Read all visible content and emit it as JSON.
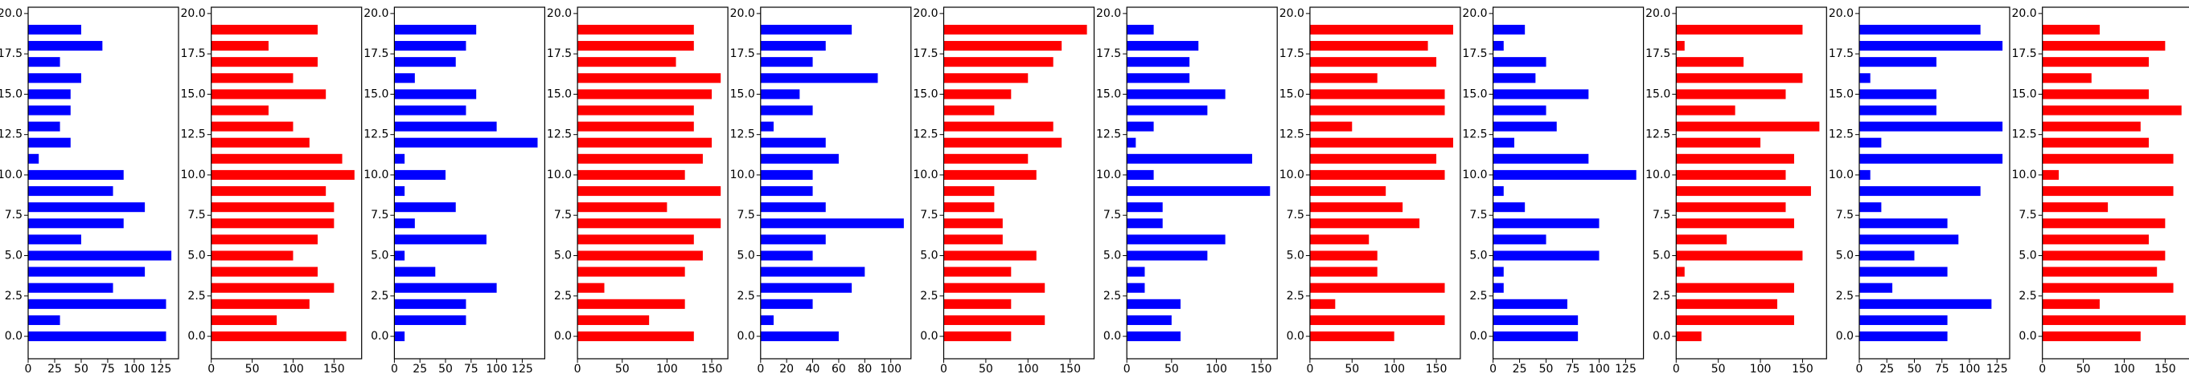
{
  "chart_data": [
    {
      "type": "barh",
      "color": "#0000ff",
      "y": [
        0,
        1,
        2,
        3,
        4,
        5,
        6,
        7,
        8,
        9,
        10,
        11,
        12,
        13,
        14,
        15,
        16,
        17,
        18,
        19
      ],
      "values": [
        130,
        30,
        130,
        80,
        110,
        135,
        50,
        90,
        110,
        80,
        90,
        10,
        40,
        30,
        40,
        40,
        50,
        30,
        70,
        50
      ],
      "xlim": [
        0,
        141.75
      ],
      "xticks": [
        0,
        25,
        50,
        75,
        100,
        125
      ],
      "ylim": [
        -1.39,
        20.39
      ],
      "yticks": [
        {
          "value": 0,
          "label": "0.0"
        },
        {
          "value": 2.5,
          "label": "2.5"
        },
        {
          "value": 5,
          "label": "5.0"
        },
        {
          "value": 7.5,
          "label": "7.5"
        },
        {
          "value": 10,
          "label": "10.0"
        },
        {
          "value": 12.5,
          "label": "12.5"
        },
        {
          "value": 15,
          "label": "15.0"
        },
        {
          "value": 17.5,
          "label": "17.5"
        },
        {
          "value": 20,
          "label": "20.0"
        }
      ]
    },
    {
      "type": "barh",
      "color": "#ff0000",
      "y": [
        0,
        1,
        2,
        3,
        4,
        5,
        6,
        7,
        8,
        9,
        10,
        11,
        12,
        13,
        14,
        15,
        16,
        17,
        18,
        19
      ],
      "values": [
        165,
        80,
        120,
        150,
        130,
        100,
        130,
        150,
        150,
        140,
        175,
        160,
        120,
        100,
        70,
        140,
        100,
        130,
        70,
        130
      ],
      "xlim": [
        0,
        183.75
      ],
      "xticks": [
        0,
        50,
        100,
        150
      ],
      "ylim": [
        -1.39,
        20.39
      ],
      "yticks": [
        {
          "value": 0,
          "label": "0.0"
        },
        {
          "value": 2.5,
          "label": "2.5"
        },
        {
          "value": 5,
          "label": "5.0"
        },
        {
          "value": 7.5,
          "label": "7.5"
        },
        {
          "value": 10,
          "label": "10.0"
        },
        {
          "value": 12.5,
          "label": "12.5"
        },
        {
          "value": 15,
          "label": "15.0"
        },
        {
          "value": 17.5,
          "label": "17.5"
        },
        {
          "value": 20,
          "label": "20.0"
        }
      ]
    },
    {
      "type": "barh",
      "color": "#0000ff",
      "y": [
        0,
        1,
        2,
        3,
        4,
        5,
        6,
        7,
        8,
        9,
        10,
        11,
        12,
        13,
        14,
        15,
        16,
        17,
        18,
        19
      ],
      "values": [
        10,
        70,
        70,
        100,
        40,
        10,
        90,
        20,
        60,
        10,
        50,
        10,
        140,
        100,
        70,
        80,
        20,
        60,
        70,
        80
      ],
      "xlim": [
        0,
        147
      ],
      "xticks": [
        0,
        25,
        50,
        75,
        100,
        125
      ],
      "ylim": [
        -1.39,
        20.39
      ],
      "yticks": [
        {
          "value": 0,
          "label": "0.0"
        },
        {
          "value": 2.5,
          "label": "2.5"
        },
        {
          "value": 5,
          "label": "5.0"
        },
        {
          "value": 7.5,
          "label": "7.5"
        },
        {
          "value": 10,
          "label": "10.0"
        },
        {
          "value": 12.5,
          "label": "12.5"
        },
        {
          "value": 15,
          "label": "15.0"
        },
        {
          "value": 17.5,
          "label": "17.5"
        },
        {
          "value": 20,
          "label": "20.0"
        }
      ]
    },
    {
      "type": "barh",
      "color": "#ff0000",
      "y": [
        0,
        1,
        2,
        3,
        4,
        5,
        6,
        7,
        8,
        9,
        10,
        11,
        12,
        13,
        14,
        15,
        16,
        17,
        18,
        19
      ],
      "values": [
        130,
        80,
        120,
        30,
        120,
        140,
        130,
        160,
        100,
        160,
        120,
        140,
        150,
        130,
        130,
        150,
        160,
        110,
        130,
        130
      ],
      "xlim": [
        0,
        168
      ],
      "xticks": [
        0,
        50,
        100,
        150
      ],
      "ylim": [
        -1.39,
        20.39
      ],
      "yticks": [
        {
          "value": 0,
          "label": "0.0"
        },
        {
          "value": 2.5,
          "label": "2.5"
        },
        {
          "value": 5,
          "label": "5.0"
        },
        {
          "value": 7.5,
          "label": "7.5"
        },
        {
          "value": 10,
          "label": "10.0"
        },
        {
          "value": 12.5,
          "label": "12.5"
        },
        {
          "value": 15,
          "label": "15.0"
        },
        {
          "value": 17.5,
          "label": "17.5"
        },
        {
          "value": 20,
          "label": "20.0"
        }
      ]
    },
    {
      "type": "barh",
      "color": "#0000ff",
      "y": [
        0,
        1,
        2,
        3,
        4,
        5,
        6,
        7,
        8,
        9,
        10,
        11,
        12,
        13,
        14,
        15,
        16,
        17,
        18,
        19
      ],
      "values": [
        60,
        10,
        40,
        70,
        80,
        40,
        50,
        110,
        50,
        40,
        40,
        60,
        50,
        10,
        40,
        30,
        90,
        40,
        50,
        70
      ],
      "xlim": [
        0,
        115.5
      ],
      "xticks": [
        0,
        20,
        40,
        60,
        80,
        100
      ],
      "ylim": [
        -1.39,
        20.39
      ],
      "yticks": [
        {
          "value": 0,
          "label": "0.0"
        },
        {
          "value": 2.5,
          "label": "2.5"
        },
        {
          "value": 5,
          "label": "5.0"
        },
        {
          "value": 7.5,
          "label": "7.5"
        },
        {
          "value": 10,
          "label": "10.0"
        },
        {
          "value": 12.5,
          "label": "12.5"
        },
        {
          "value": 15,
          "label": "15.0"
        },
        {
          "value": 17.5,
          "label": "17.5"
        },
        {
          "value": 20,
          "label": "20.0"
        }
      ]
    },
    {
      "type": "barh",
      "color": "#ff0000",
      "y": [
        0,
        1,
        2,
        3,
        4,
        5,
        6,
        7,
        8,
        9,
        10,
        11,
        12,
        13,
        14,
        15,
        16,
        17,
        18,
        19
      ],
      "values": [
        80,
        120,
        80,
        120,
        80,
        110,
        70,
        70,
        60,
        60,
        110,
        100,
        140,
        130,
        60,
        80,
        100,
        130,
        140,
        170
      ],
      "xlim": [
        0,
        178.5
      ],
      "xticks": [
        0,
        50,
        100,
        150
      ],
      "ylim": [
        -1.39,
        20.39
      ],
      "yticks": [
        {
          "value": 0,
          "label": "0.0"
        },
        {
          "value": 2.5,
          "label": "2.5"
        },
        {
          "value": 5,
          "label": "5.0"
        },
        {
          "value": 7.5,
          "label": "7.5"
        },
        {
          "value": 10,
          "label": "10.0"
        },
        {
          "value": 12.5,
          "label": "12.5"
        },
        {
          "value": 15,
          "label": "15.0"
        },
        {
          "value": 17.5,
          "label": "17.5"
        },
        {
          "value": 20,
          "label": "20.0"
        }
      ]
    },
    {
      "type": "barh",
      "color": "#0000ff",
      "y": [
        0,
        1,
        2,
        3,
        4,
        5,
        6,
        7,
        8,
        9,
        10,
        11,
        12,
        13,
        14,
        15,
        16,
        17,
        18,
        19
      ],
      "values": [
        60,
        50,
        60,
        20,
        20,
        90,
        110,
        40,
        40,
        160,
        30,
        140,
        10,
        30,
        90,
        110,
        70,
        70,
        80,
        30
      ],
      "xlim": [
        0,
        168
      ],
      "xticks": [
        0,
        50,
        100,
        150
      ],
      "ylim": [
        -1.39,
        20.39
      ],
      "yticks": [
        {
          "value": 0,
          "label": "0.0"
        },
        {
          "value": 2.5,
          "label": "2.5"
        },
        {
          "value": 5,
          "label": "5.0"
        },
        {
          "value": 7.5,
          "label": "7.5"
        },
        {
          "value": 10,
          "label": "10.0"
        },
        {
          "value": 12.5,
          "label": "12.5"
        },
        {
          "value": 15,
          "label": "15.0"
        },
        {
          "value": 17.5,
          "label": "17.5"
        },
        {
          "value": 20,
          "label": "20.0"
        }
      ]
    },
    {
      "type": "barh",
      "color": "#ff0000",
      "y": [
        0,
        1,
        2,
        3,
        4,
        5,
        6,
        7,
        8,
        9,
        10,
        11,
        12,
        13,
        14,
        15,
        16,
        17,
        18,
        19
      ],
      "values": [
        100,
        160,
        30,
        160,
        80,
        80,
        70,
        130,
        110,
        90,
        160,
        150,
        170,
        50,
        160,
        160,
        80,
        150,
        140,
        170
      ],
      "xlim": [
        0,
        178.5
      ],
      "xticks": [
        0,
        50,
        100,
        150
      ],
      "ylim": [
        -1.39,
        20.39
      ],
      "yticks": [
        {
          "value": 0,
          "label": "0.0"
        },
        {
          "value": 2.5,
          "label": "2.5"
        },
        {
          "value": 5,
          "label": "5.0"
        },
        {
          "value": 7.5,
          "label": "7.5"
        },
        {
          "value": 10,
          "label": "10.0"
        },
        {
          "value": 12.5,
          "label": "12.5"
        },
        {
          "value": 15,
          "label": "15.0"
        },
        {
          "value": 17.5,
          "label": "17.5"
        },
        {
          "value": 20,
          "label": "20.0"
        }
      ]
    },
    {
      "type": "barh",
      "color": "#0000ff",
      "y": [
        0,
        1,
        2,
        3,
        4,
        5,
        6,
        7,
        8,
        9,
        10,
        11,
        12,
        13,
        14,
        15,
        16,
        17,
        18,
        19
      ],
      "values": [
        80,
        80,
        70,
        10,
        10,
        100,
        50,
        100,
        30,
        10,
        135,
        90,
        20,
        60,
        50,
        90,
        40,
        50,
        10,
        30
      ],
      "xlim": [
        0,
        141.75
      ],
      "xticks": [
        0,
        25,
        50,
        75,
        100,
        125
      ],
      "ylim": [
        -1.39,
        20.39
      ],
      "yticks": [
        {
          "value": 0,
          "label": "0.0"
        },
        {
          "value": 2.5,
          "label": "2.5"
        },
        {
          "value": 5,
          "label": "5.0"
        },
        {
          "value": 7.5,
          "label": "7.5"
        },
        {
          "value": 10,
          "label": "10.0"
        },
        {
          "value": 12.5,
          "label": "12.5"
        },
        {
          "value": 15,
          "label": "15.0"
        },
        {
          "value": 17.5,
          "label": "17.5"
        },
        {
          "value": 20,
          "label": "20.0"
        }
      ]
    },
    {
      "type": "barh",
      "color": "#ff0000",
      "y": [
        0,
        1,
        2,
        3,
        4,
        5,
        6,
        7,
        8,
        9,
        10,
        11,
        12,
        13,
        14,
        15,
        16,
        17,
        18,
        19
      ],
      "values": [
        30,
        140,
        120,
        140,
        10,
        150,
        60,
        140,
        130,
        160,
        130,
        140,
        100,
        170,
        70,
        130,
        150,
        80,
        10,
        150
      ],
      "xlim": [
        0,
        178.5
      ],
      "xticks": [
        0,
        50,
        100,
        150
      ],
      "ylim": [
        -1.39,
        20.39
      ],
      "yticks": [
        {
          "value": 0,
          "label": "0.0"
        },
        {
          "value": 2.5,
          "label": "2.5"
        },
        {
          "value": 5,
          "label": "5.0"
        },
        {
          "value": 7.5,
          "label": "7.5"
        },
        {
          "value": 10,
          "label": "10.0"
        },
        {
          "value": 12.5,
          "label": "12.5"
        },
        {
          "value": 15,
          "label": "15.0"
        },
        {
          "value": 17.5,
          "label": "17.5"
        },
        {
          "value": 20,
          "label": "20.0"
        }
      ]
    },
    {
      "type": "barh",
      "color": "#0000ff",
      "y": [
        0,
        1,
        2,
        3,
        4,
        5,
        6,
        7,
        8,
        9,
        10,
        11,
        12,
        13,
        14,
        15,
        16,
        17,
        18,
        19
      ],
      "values": [
        80,
        80,
        120,
        30,
        80,
        50,
        90,
        80,
        20,
        110,
        10,
        130,
        20,
        130,
        70,
        70,
        10,
        70,
        130,
        110
      ],
      "xlim": [
        0,
        136.5
      ],
      "xticks": [
        0,
        25,
        50,
        75,
        100,
        125
      ],
      "ylim": [
        -1.39,
        20.39
      ],
      "yticks": [
        {
          "value": 0,
          "label": "0.0"
        },
        {
          "value": 2.5,
          "label": "2.5"
        },
        {
          "value": 5,
          "label": "5.0"
        },
        {
          "value": 7.5,
          "label": "7.5"
        },
        {
          "value": 10,
          "label": "10.0"
        },
        {
          "value": 12.5,
          "label": "12.5"
        },
        {
          "value": 15,
          "label": "15.0"
        },
        {
          "value": 17.5,
          "label": "17.5"
        },
        {
          "value": 20,
          "label": "20.0"
        }
      ]
    },
    {
      "type": "barh",
      "color": "#ff0000",
      "y": [
        0,
        1,
        2,
        3,
        4,
        5,
        6,
        7,
        8,
        9,
        10,
        11,
        12,
        13,
        14,
        15,
        16,
        17,
        18,
        19
      ],
      "values": [
        120,
        175,
        70,
        160,
        140,
        150,
        130,
        150,
        80,
        160,
        20,
        160,
        130,
        120,
        170,
        130,
        60,
        130,
        150,
        70
      ],
      "xlim": [
        0,
        183.75
      ],
      "xticks": [
        0,
        50,
        100,
        150
      ],
      "ylim": [
        -1.39,
        20.39
      ],
      "yticks": [
        {
          "value": 0,
          "label": "0.0"
        },
        {
          "value": 2.5,
          "label": "2.5"
        },
        {
          "value": 5,
          "label": "5.0"
        },
        {
          "value": 7.5,
          "label": "7.5"
        },
        {
          "value": 10,
          "label": "10.0"
        },
        {
          "value": 12.5,
          "label": "12.5"
        },
        {
          "value": 15,
          "label": "15.0"
        },
        {
          "value": 17.5,
          "label": "17.5"
        },
        {
          "value": 20,
          "label": "20.0"
        }
      ]
    }
  ]
}
